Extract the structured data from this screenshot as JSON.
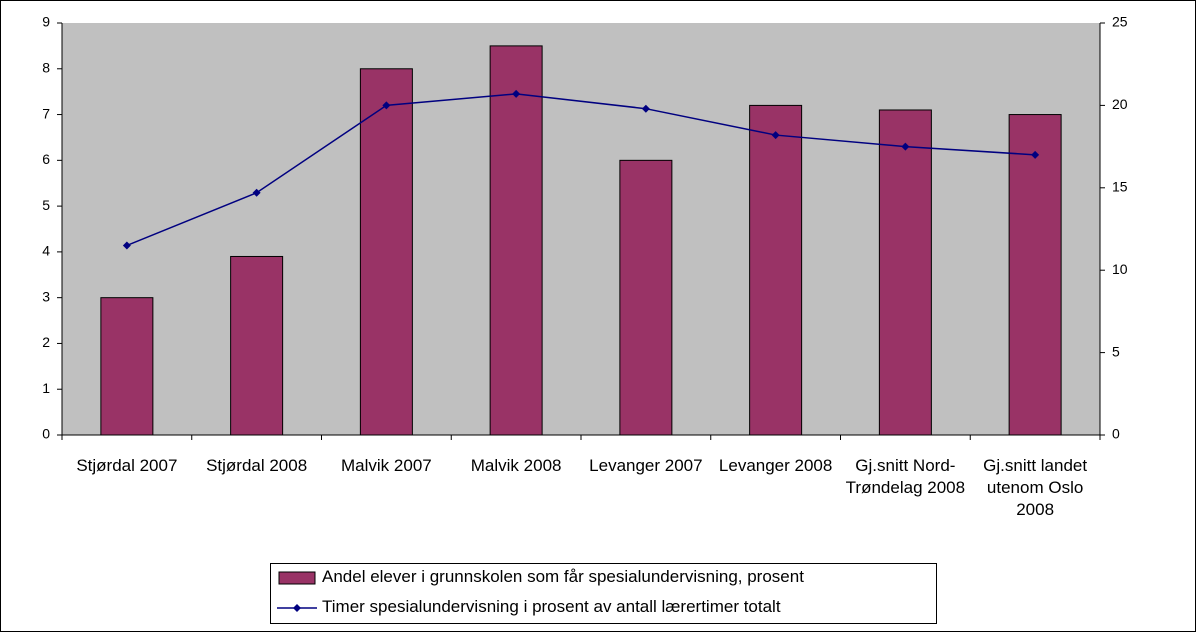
{
  "chart_data": {
    "type": "bar",
    "categories": [
      "Stjørdal 2007",
      "Stjørdal 2008",
      "Malvik 2007",
      "Malvik 2008",
      "Levanger 2007",
      "Levanger 2008",
      "Gj.snitt Nord-Trøndelag 2008",
      "Gj.snitt landet utenom Oslo 2008"
    ],
    "series": [
      {
        "name": "Andel elever i grunnskolen som får spesialundervisning, prosent",
        "type": "bar",
        "color": "#993366",
        "values": [
          3,
          3.9,
          8,
          8.5,
          6,
          7.2,
          7.1,
          7
        ]
      },
      {
        "name": "Timer spesialundervisning i prosent av antall lærertimer totalt",
        "type": "line",
        "axis": "y2",
        "color": "#000080",
        "values": [
          11.5,
          14.7,
          20,
          20.7,
          19.8,
          18.2,
          17.5,
          17
        ]
      }
    ],
    "ylim": [
      0,
      9
    ],
    "yticks": [
      0,
      1,
      2,
      3,
      4,
      5,
      6,
      7,
      8,
      9
    ],
    "y2lim": [
      0,
      25
    ],
    "y2ticks": [
      0,
      5,
      10,
      15,
      20,
      25
    ],
    "legend": "bottom"
  }
}
